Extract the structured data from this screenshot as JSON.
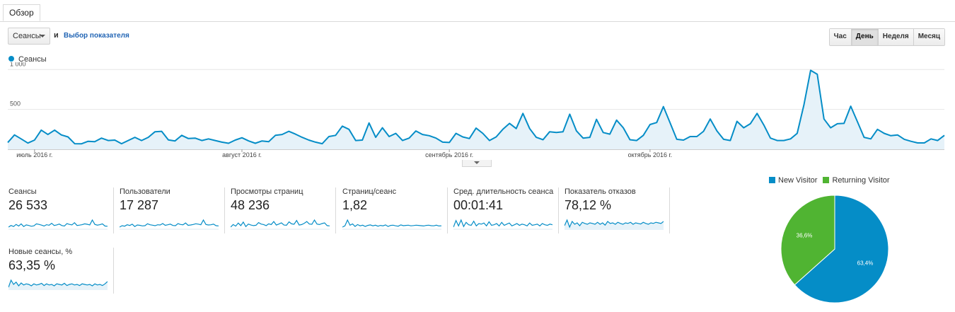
{
  "tab": {
    "label": "Обзор"
  },
  "toolbar": {
    "metric_select": "Сеансы",
    "and_label": "и",
    "select_metric_link": "Выбор показателя",
    "period_buttons": [
      "Час",
      "День",
      "Неделя",
      "Месяц"
    ],
    "active_period": "День"
  },
  "chart_data": [
    {
      "type": "area",
      "series": [
        {
          "name": "Сеансы",
          "values": [
            85,
            180,
            130,
            78,
            115,
            240,
            185,
            240,
            180,
            155,
            70,
            68,
            100,
            95,
            140,
            110,
            115,
            70,
            110,
            150,
            110,
            150,
            220,
            225,
            118,
            105,
            175,
            135,
            140,
            110,
            130,
            110,
            90,
            75,
            115,
            145,
            105,
            75,
            105,
            95,
            175,
            185,
            225,
            190,
            150,
            115,
            90,
            70,
            160,
            175,
            290,
            250,
            110,
            115,
            330,
            150,
            270,
            160,
            200,
            110,
            140,
            230,
            185,
            170,
            140,
            90,
            85,
            200,
            155,
            135,
            265,
            200,
            110,
            155,
            250,
            325,
            260,
            450,
            260,
            150,
            120,
            220,
            210,
            220,
            440,
            230,
            140,
            150,
            375,
            210,
            190,
            365,
            270,
            120,
            110,
            175,
            310,
            335,
            535,
            330,
            125,
            115,
            160,
            160,
            225,
            380,
            230,
            125,
            110,
            350,
            270,
            320,
            450,
            305,
            140,
            110,
            110,
            130,
            200,
            555,
            990,
            940,
            380,
            270,
            320,
            325,
            540,
            345,
            150,
            130,
            250,
            200,
            170,
            180,
            125,
            100,
            80,
            80,
            130,
            110,
            175
          ],
          "color": "#058dc7"
        }
      ],
      "x_tick_labels": [
        "июль 2016 г.",
        "август 2016 г.",
        "сентябрь 2016 г.",
        "октябрь 2016 г."
      ],
      "y_tick_labels": [
        "1 000",
        "500"
      ],
      "ylim": [
        0,
        1020
      ],
      "legend": "top-left",
      "grid": true
    },
    {
      "type": "pie",
      "slices": [
        {
          "label": "New Visitor",
          "value": 63.4,
          "text": "63,4%",
          "color": "#058dc7"
        },
        {
          "label": "Returning Visitor",
          "value": 36.6,
          "text": "36,6%",
          "color": "#50b432"
        }
      ],
      "legend": "top"
    }
  ],
  "cards": [
    {
      "label": "Сеансы",
      "value": "26 533",
      "spark": [
        30,
        45,
        35,
        55,
        40,
        60,
        35,
        50,
        45,
        38,
        42,
        60,
        55,
        48,
        40,
        52,
        47,
        65,
        45,
        50,
        58,
        44,
        40,
        62,
        55,
        50,
        70,
        45,
        48,
        52,
        60,
        56,
        50,
        95,
        55,
        48,
        52,
        60,
        40,
        38
      ]
    },
    {
      "label": "Пользователи",
      "value": "17 287",
      "spark": [
        30,
        42,
        38,
        50,
        44,
        55,
        35,
        48,
        45,
        40,
        42,
        58,
        50,
        46,
        42,
        50,
        48,
        60,
        45,
        50,
        55,
        44,
        42,
        60,
        52,
        50,
        65,
        45,
        48,
        52,
        58,
        55,
        50,
        90,
        52,
        48,
        50,
        55,
        42,
        40
      ]
    },
    {
      "label": "Просмотры страниц",
      "value": "48 236",
      "spark": [
        30,
        55,
        40,
        70,
        45,
        80,
        35,
        60,
        50,
        45,
        48,
        75,
        60,
        55,
        45,
        62,
        55,
        85,
        50,
        60,
        72,
        50,
        48,
        82,
        62,
        58,
        95,
        50,
        55,
        68,
        85,
        60,
        58,
        100,
        60,
        55,
        65,
        72,
        45,
        42
      ]
    },
    {
      "label": "Страниц/сеанс",
      "value": "1,82",
      "spark": [
        45,
        55,
        100,
        60,
        70,
        50,
        65,
        55,
        60,
        50,
        58,
        62,
        55,
        60,
        52,
        58,
        55,
        62,
        50,
        58,
        60,
        55,
        52,
        62,
        56,
        58,
        60,
        55,
        57,
        60,
        58,
        56,
        54,
        58,
        60,
        56,
        55,
        60,
        54,
        55
      ]
    },
    {
      "label": "Сред. длительность сеанса",
      "value": "00:01:41",
      "spark": [
        40,
        95,
        50,
        100,
        45,
        80,
        60,
        55,
        90,
        50,
        70,
        65,
        75,
        50,
        85,
        55,
        60,
        70,
        50,
        80,
        55,
        65,
        75,
        50,
        60,
        70,
        55,
        65,
        60,
        50,
        75,
        55,
        60,
        65,
        50,
        70,
        60,
        55,
        65,
        60
      ]
    },
    {
      "label": "Показатель отказов",
      "value": "78,12 %",
      "spark": [
        50,
        70,
        45,
        65,
        55,
        60,
        50,
        62,
        58,
        55,
        60,
        58,
        55,
        62,
        55,
        60,
        52,
        65,
        58,
        60,
        55,
        62,
        58,
        55,
        60,
        58,
        62,
        55,
        60,
        58,
        56,
        62,
        58,
        55,
        60,
        58,
        62,
        60,
        58,
        65
      ]
    },
    {
      "label": "Новые сеансы, %",
      "value": "63,35 %",
      "spark": [
        50,
        75,
        60,
        68,
        55,
        65,
        58,
        62,
        60,
        55,
        62,
        58,
        60,
        64,
        56,
        62,
        58,
        60,
        55,
        62,
        60,
        58,
        64,
        56,
        60,
        62,
        58,
        60,
        56,
        62,
        60,
        58,
        60,
        55,
        62,
        58,
        60,
        56,
        62,
        70
      ]
    }
  ]
}
